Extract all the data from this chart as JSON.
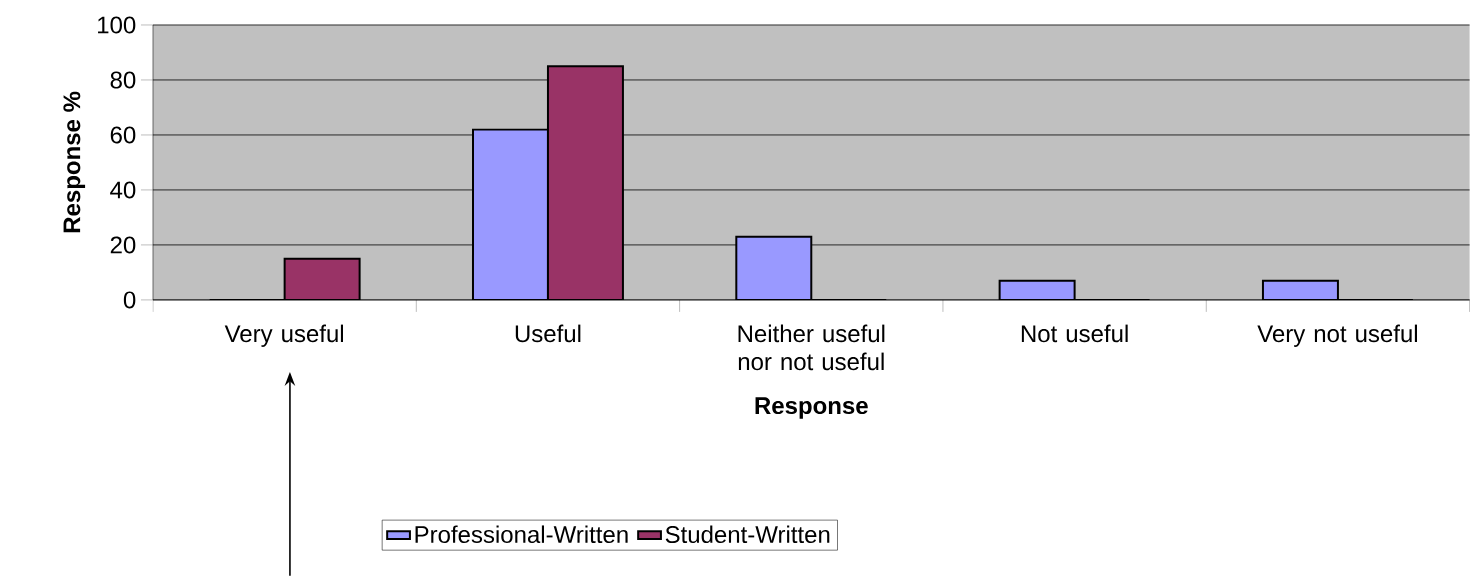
{
  "chart_data": {
    "type": "bar",
    "xlabel": "Response",
    "ylabel": "Response %",
    "categories": [
      "Very useful",
      "Useful",
      "Neither useful nor not useful",
      "Not useful",
      "Very not useful"
    ],
    "series": [
      {
        "name": "Professional-Written",
        "color": "#9999ff",
        "values": [
          0,
          62,
          23,
          7,
          7
        ]
      },
      {
        "name": "Student-Written",
        "color": "#993366",
        "values": [
          15,
          85,
          0,
          0,
          0
        ]
      }
    ],
    "ylim": [
      0,
      100
    ],
    "yticks": [
      0,
      20,
      40,
      60,
      80,
      100
    ],
    "grid": "y",
    "legend": "bottom"
  }
}
